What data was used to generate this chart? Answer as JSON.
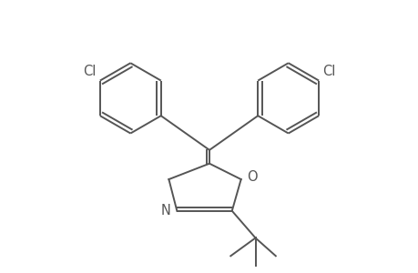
{
  "bg_color": "#ffffff",
  "line_color": "#555555",
  "line_width": 1.4,
  "font_size": 10.5,
  "figsize": [
    4.6,
    3.0
  ],
  "dpi": 100,
  "xlim": [
    0,
    9.2
  ],
  "ylim": [
    0,
    6.0
  ]
}
